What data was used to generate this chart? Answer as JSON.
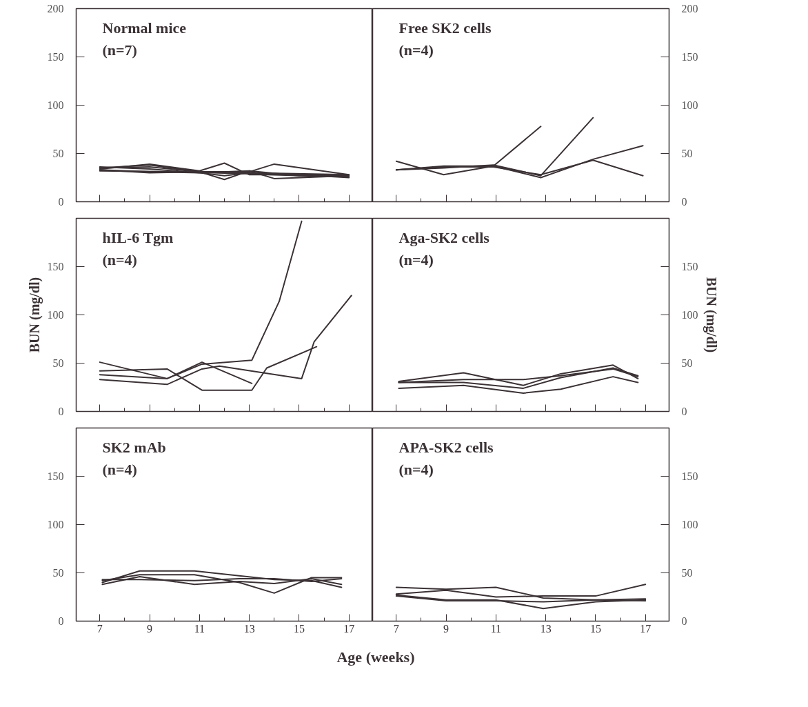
{
  "chart_data": [
    {
      "type": "line",
      "title": "Normal mice",
      "subtitle": "(n=7)",
      "xlim": [
        6.05,
        17.95
      ],
      "ylim": [
        0,
        200
      ],
      "xticks": [
        7,
        9,
        11,
        13,
        15,
        17
      ],
      "yticks": [
        0,
        50,
        100,
        150,
        200
      ],
      "tick_labels": "y",
      "series": [
        {
          "color": "#3b3236",
          "x": [
            7,
            9,
            11,
            12,
            13,
            15,
            17
          ],
          "values": [
            34,
            39,
            32,
            40,
            28,
            28,
            27
          ]
        },
        {
          "color": "#3b3236",
          "x": [
            7,
            9,
            11,
            13,
            14,
            17
          ],
          "values": [
            35,
            38,
            31,
            31,
            39,
            28
          ]
        },
        {
          "color": "#3b3236",
          "x": [
            7,
            9,
            11,
            12,
            13,
            15,
            17
          ],
          "values": [
            33,
            30,
            31,
            23,
            32,
            27,
            26
          ]
        },
        {
          "color": "#3b3236",
          "x": [
            7,
            9,
            11,
            13,
            14,
            17
          ],
          "values": [
            33,
            31,
            30,
            32,
            24,
            27
          ]
        },
        {
          "color": "#3b3236",
          "x": [
            7,
            9,
            11,
            12,
            13,
            15,
            17
          ],
          "values": [
            36,
            34,
            30,
            27,
            30,
            28,
            25
          ]
        },
        {
          "color": "#3b3236",
          "x": [
            7,
            10,
            13,
            15,
            17
          ],
          "values": [
            32,
            31,
            29,
            27,
            26
          ]
        },
        {
          "color": "#3b3236",
          "x": [
            7,
            9,
            11,
            13,
            17
          ],
          "values": [
            35,
            36,
            31,
            30,
            28
          ]
        }
      ]
    },
    {
      "type": "line",
      "title": "Free SK2 cells",
      "subtitle": "(n=4)",
      "xlim": [
        6.05,
        17.95
      ],
      "ylim": [
        0,
        200
      ],
      "xticks": [
        7,
        9,
        11,
        13,
        15,
        17
      ],
      "yticks": [
        0,
        50,
        100,
        150,
        200
      ],
      "tick_labels": "y",
      "series": [
        {
          "color": "#3b3236",
          "x": [
            7,
            8.9,
            10.9,
            12.8
          ],
          "values": [
            42,
            28,
            37,
            78
          ]
        },
        {
          "color": "#3b3236",
          "x": [
            7,
            8.9,
            10.9,
            12.8,
            14.9
          ],
          "values": [
            33,
            35,
            38,
            27,
            87
          ]
        },
        {
          "color": "#3b3236",
          "x": [
            7,
            8.9,
            10.9,
            12.8,
            14.9,
            16.9
          ],
          "values": [
            33,
            37,
            37,
            25,
            44,
            58
          ]
        },
        {
          "color": "#3b3236",
          "x": [
            7,
            8.9,
            10.9,
            12.8,
            14.9,
            16.9
          ],
          "values": [
            33,
            36,
            36,
            28,
            43,
            27
          ]
        }
      ]
    },
    {
      "type": "line",
      "title": "hIL-6 Tgm",
      "subtitle": "(n=4)",
      "ylabel": "BUN (mg/dl)",
      "xlim": [
        6.05,
        17.95
      ],
      "ylim": [
        0,
        200
      ],
      "xticks": [
        7,
        9,
        11,
        13,
        15,
        17
      ],
      "yticks": [
        0,
        50,
        100,
        150
      ],
      "tick_labels": "y",
      "series": [
        {
          "color": "#3b3236",
          "x": [
            7,
            9.7,
            11.1,
            13.1
          ],
          "values": [
            51,
            34,
            51,
            29
          ]
        },
        {
          "color": "#3b3236",
          "x": [
            7,
            9.7,
            11.1,
            13.1,
            13.7,
            15.7
          ],
          "values": [
            42,
            44,
            22,
            22,
            45,
            67
          ]
        },
        {
          "color": "#3b3236",
          "x": [
            7,
            9.7,
            11.1,
            13.1,
            14.2,
            15.1
          ],
          "values": [
            38,
            34,
            49,
            53,
            114,
            197
          ]
        },
        {
          "color": "#3b3236",
          "x": [
            7,
            9.7,
            11.1,
            11.8,
            15.1,
            15.6,
            17.1
          ],
          "values": [
            33,
            28,
            44,
            47,
            34,
            72,
            120
          ]
        }
      ]
    },
    {
      "type": "line",
      "title": "Aga-SK2 cells",
      "subtitle": "(n=4)",
      "ylabel": "BUN (mg/dl)",
      "xlim": [
        6.05,
        17.95
      ],
      "ylim": [
        0,
        200
      ],
      "xticks": [
        7,
        9,
        11,
        13,
        15,
        17
      ],
      "yticks": [
        0,
        50,
        100,
        150
      ],
      "tick_labels": "y",
      "series": [
        {
          "color": "#3b3236",
          "x": [
            7.1,
            9.7,
            12.1,
            13.6,
            15.7,
            16.7
          ],
          "values": [
            31,
            40,
            27,
            39,
            48,
            34
          ]
        },
        {
          "color": "#3b3236",
          "x": [
            7.1,
            9.7,
            12.1,
            13.6,
            15.7,
            16.7
          ],
          "values": [
            30,
            33,
            33,
            37,
            44,
            36
          ]
        },
        {
          "color": "#3b3236",
          "x": [
            7.1,
            9.7,
            12.1,
            13.6,
            15.7,
            16.7
          ],
          "values": [
            30,
            30,
            24,
            35,
            45,
            37
          ]
        },
        {
          "color": "#3b3236",
          "x": [
            7.1,
            9.7,
            12.1,
            13.6,
            15.7,
            16.7
          ],
          "values": [
            24,
            27,
            19,
            23,
            36,
            30
          ]
        }
      ]
    },
    {
      "type": "line",
      "title": "SK2 mAb",
      "subtitle": "(n=4)",
      "xlabel": "Age (weeks)",
      "xlim": [
        6.05,
        17.95
      ],
      "ylim": [
        0,
        200
      ],
      "xticks": [
        7,
        9,
        11,
        13,
        15,
        17
      ],
      "yticks": [
        0,
        50,
        100,
        150
      ],
      "series": [
        {
          "color": "#3b3236",
          "x": [
            7.1,
            8.6,
            10.8,
            14.0,
            15.5,
            16.7
          ],
          "values": [
            40,
            52,
            52,
            43,
            42,
            35
          ]
        },
        {
          "color": "#3b3236",
          "x": [
            7.1,
            8.6,
            10.8,
            12.6,
            14.0,
            15.5,
            16.7
          ],
          "values": [
            42,
            48,
            48,
            40,
            29,
            45,
            45
          ]
        },
        {
          "color": "#3b3236",
          "x": [
            7.1,
            8.6,
            10.8,
            12.6,
            14.0,
            15.5,
            16.7
          ],
          "values": [
            38,
            46,
            38,
            41,
            39,
            44,
            38
          ]
        },
        {
          "color": "#3b3236",
          "x": [
            7.1,
            8.6,
            10.8,
            12.6,
            14.0,
            15.5,
            16.7
          ],
          "values": [
            43,
            43,
            42,
            44,
            44,
            41,
            44
          ]
        }
      ]
    },
    {
      "type": "line",
      "title": "APA-SK2 cells",
      "subtitle": "(n=4)",
      "xlim": [
        6.05,
        17.95
      ],
      "ylim": [
        0,
        200
      ],
      "xticks": [
        7,
        9,
        11,
        13,
        15,
        17
      ],
      "yticks": [
        0,
        50,
        100,
        150
      ],
      "series": [
        {
          "color": "#3b3236",
          "x": [
            7,
            9,
            11,
            12.9,
            15,
            17
          ],
          "values": [
            35,
            33,
            35,
            24,
            22,
            21
          ]
        },
        {
          "color": "#3b3236",
          "x": [
            7,
            9,
            11,
            12.9,
            15,
            17
          ],
          "values": [
            28,
            32,
            25,
            26,
            26,
            38
          ]
        },
        {
          "color": "#3b3236",
          "x": [
            7,
            9,
            11,
            12.9,
            15,
            17
          ],
          "values": [
            27,
            22,
            22,
            13,
            20,
            22
          ]
        },
        {
          "color": "#3b3236",
          "x": [
            7,
            9,
            11,
            12.9,
            15,
            17
          ],
          "values": [
            26,
            21,
            21,
            20,
            22,
            23
          ]
        }
      ]
    }
  ]
}
